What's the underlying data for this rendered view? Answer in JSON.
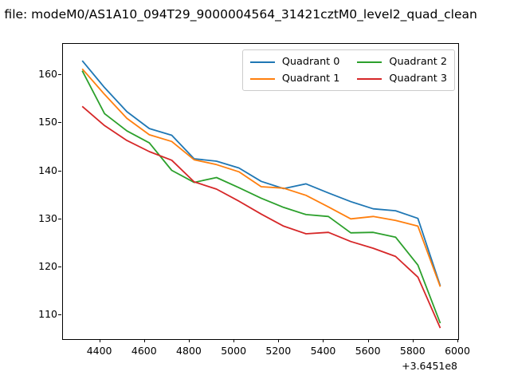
{
  "figure": {
    "title": "a file: modeM0/AS1A10_094T29_9000004564_31421cztM0_level2_quad_clean",
    "background_color": "#ffffff"
  },
  "chart_data": {
    "type": "line",
    "title": "a file: modeM0/AS1A10_094T29_9000004564_31421cztM0_level2_quad_clean",
    "xlabel": "",
    "ylabel": "",
    "x_offset_text": "+3.6451e8",
    "grid": false,
    "legend_position": "upper right",
    "legend_columns": 2,
    "xlim": [
      4234,
      6000
    ],
    "ylim": [
      105.1,
      166.5
    ],
    "xticks": [
      4400,
      4600,
      4800,
      5000,
      5200,
      5400,
      5600,
      5800,
      6000
    ],
    "yticks": [
      110,
      120,
      130,
      140,
      150,
      160
    ],
    "x": [
      4320,
      4420,
      4520,
      4620,
      4720,
      4820,
      4920,
      5020,
      5120,
      5220,
      5320,
      5420,
      5520,
      5620,
      5720,
      5820,
      5920
    ],
    "series": [
      {
        "name": "Quadrant 0",
        "color": "#1f77b4",
        "values": [
          163.0,
          157.4,
          152.4,
          148.9,
          147.5,
          142.6,
          142.1,
          140.7,
          137.9,
          136.4,
          137.4,
          135.5,
          133.7,
          132.2,
          131.8,
          130.2,
          116.2
        ]
      },
      {
        "name": "Quadrant 1",
        "color": "#ff7f0e",
        "values": [
          161.3,
          156.0,
          151.0,
          147.6,
          146.2,
          142.4,
          141.4,
          139.9,
          136.8,
          136.5,
          135.0,
          132.6,
          130.1,
          130.6,
          129.8,
          128.6,
          116.0
        ]
      },
      {
        "name": "Quadrant 2",
        "color": "#2ca02c",
        "values": [
          160.9,
          152.0,
          148.4,
          145.9,
          140.2,
          137.7,
          138.7,
          136.6,
          134.4,
          132.5,
          131.0,
          130.6,
          127.2,
          127.3,
          126.3,
          120.5,
          108.4
        ]
      },
      {
        "name": "Quadrant 3",
        "color": "#d62728",
        "values": [
          153.5,
          149.5,
          146.4,
          144.1,
          142.3,
          137.8,
          136.3,
          133.8,
          131.1,
          128.6,
          127.0,
          127.3,
          125.4,
          124.0,
          122.3,
          118.0,
          107.4
        ]
      }
    ]
  }
}
